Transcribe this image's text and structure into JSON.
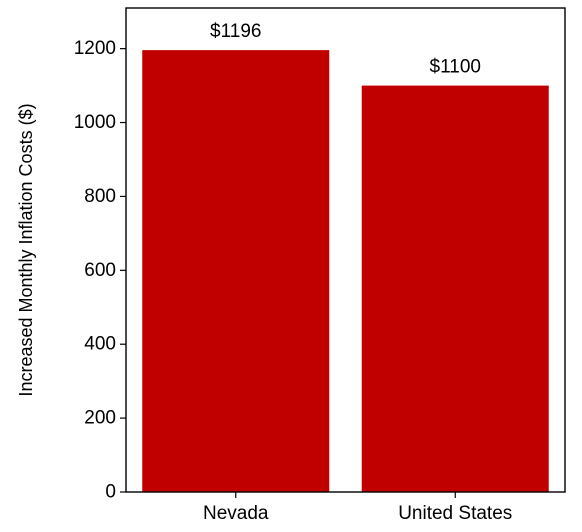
{
  "chart_data": {
    "type": "bar",
    "categories": [
      "Nevada",
      "United States"
    ],
    "values": [
      1196,
      1100
    ],
    "data_labels": [
      "$1196",
      "$1100"
    ],
    "title": "",
    "xlabel": "",
    "ylabel": "Increased Monthly Inflation Costs ($)",
    "ylim": [
      0,
      1310
    ],
    "yticks": [
      0,
      200,
      400,
      600,
      800,
      1000,
      1200
    ],
    "bar_color": "#c00000",
    "grid": false,
    "legend": "none"
  }
}
